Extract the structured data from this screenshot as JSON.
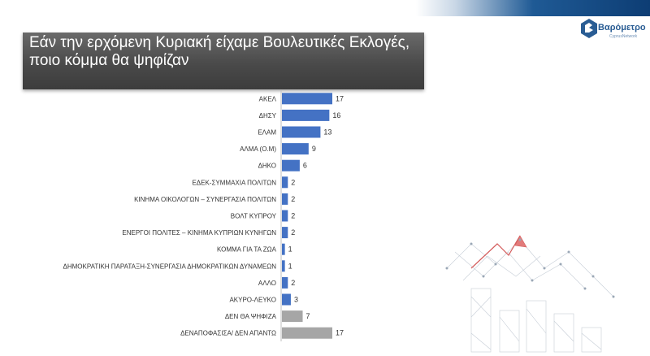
{
  "title": {
    "line1": "Εάν την ερχόμενη Κυριακή είχαμε Βουλευτικές Εκλογές,",
    "line2": "ποιο κόμμα θα ψηφίζαν"
  },
  "logo": {
    "name": "Βαρόμετρο",
    "subtitle": "CyprusNetwork"
  },
  "colors": {
    "party_bar": "#4472c4",
    "other_bar": "#a6a6a6",
    "title_bg": "#4d4d4d"
  },
  "chart_data": {
    "type": "bar",
    "orientation": "horizontal",
    "categories": [
      "ΑΚΕΛ",
      "ΔΗΣΥ",
      "ΕΛΑΜ",
      "ΑΛΜΑ (Ο.Μ)",
      "ΔΗΚΟ",
      "ΕΔΕΚ-ΣΥΜΜΑΧΙΑ ΠΟΛΙΤΩΝ",
      "ΚΙΝΗΜΑ ΟΙΚΟΛΟΓΩΝ – ΣΥΝΕΡΓΑΣΙΑ ΠΟΛΙΤΩΝ",
      "ΒΟΛΤ ΚΥΠΡΟΥ",
      "ΕΝΕΡΓΟΙ ΠΟΛΙΤΕΣ – ΚΙΝΗΜΑ ΚΥΠΡΙΩΝ ΚΥΝΗΓΩΝ",
      "ΚΟΜΜΑ ΓΙΑ ΤΑ ΖΩΑ",
      "ΔΗΜΟΚΡΑΤΙΚΗ ΠΑΡΑΤΑΞΗ-ΣΥΝΕΡΓΑΣΙΑ ΔΗΜΟΚΡΑΤΙΚΩΝ ΔΥΝΑΜΕΩΝ",
      "ΑΛΛΟ",
      "ΑΚΥΡΟ-ΛΕΥΚΟ",
      "ΔΕΝ ΘΑ ΨΗΦΙΖΑ",
      "ΔΕΝΑΠΟΦΑΣΙΣΑ/ ΔΕΝ ΑΠΑΝΤΩ"
    ],
    "values": [
      17,
      16,
      13,
      9,
      6,
      2,
      2,
      2,
      2,
      1,
      1,
      2,
      3,
      7,
      17
    ],
    "bar_colors": [
      "#4472c4",
      "#4472c4",
      "#4472c4",
      "#4472c4",
      "#4472c4",
      "#4472c4",
      "#4472c4",
      "#4472c4",
      "#4472c4",
      "#4472c4",
      "#4472c4",
      "#4472c4",
      "#4472c4",
      "#a6a6a6",
      "#a6a6a6"
    ],
    "xlim": [
      0,
      17
    ],
    "grid": false,
    "legend": "none"
  }
}
